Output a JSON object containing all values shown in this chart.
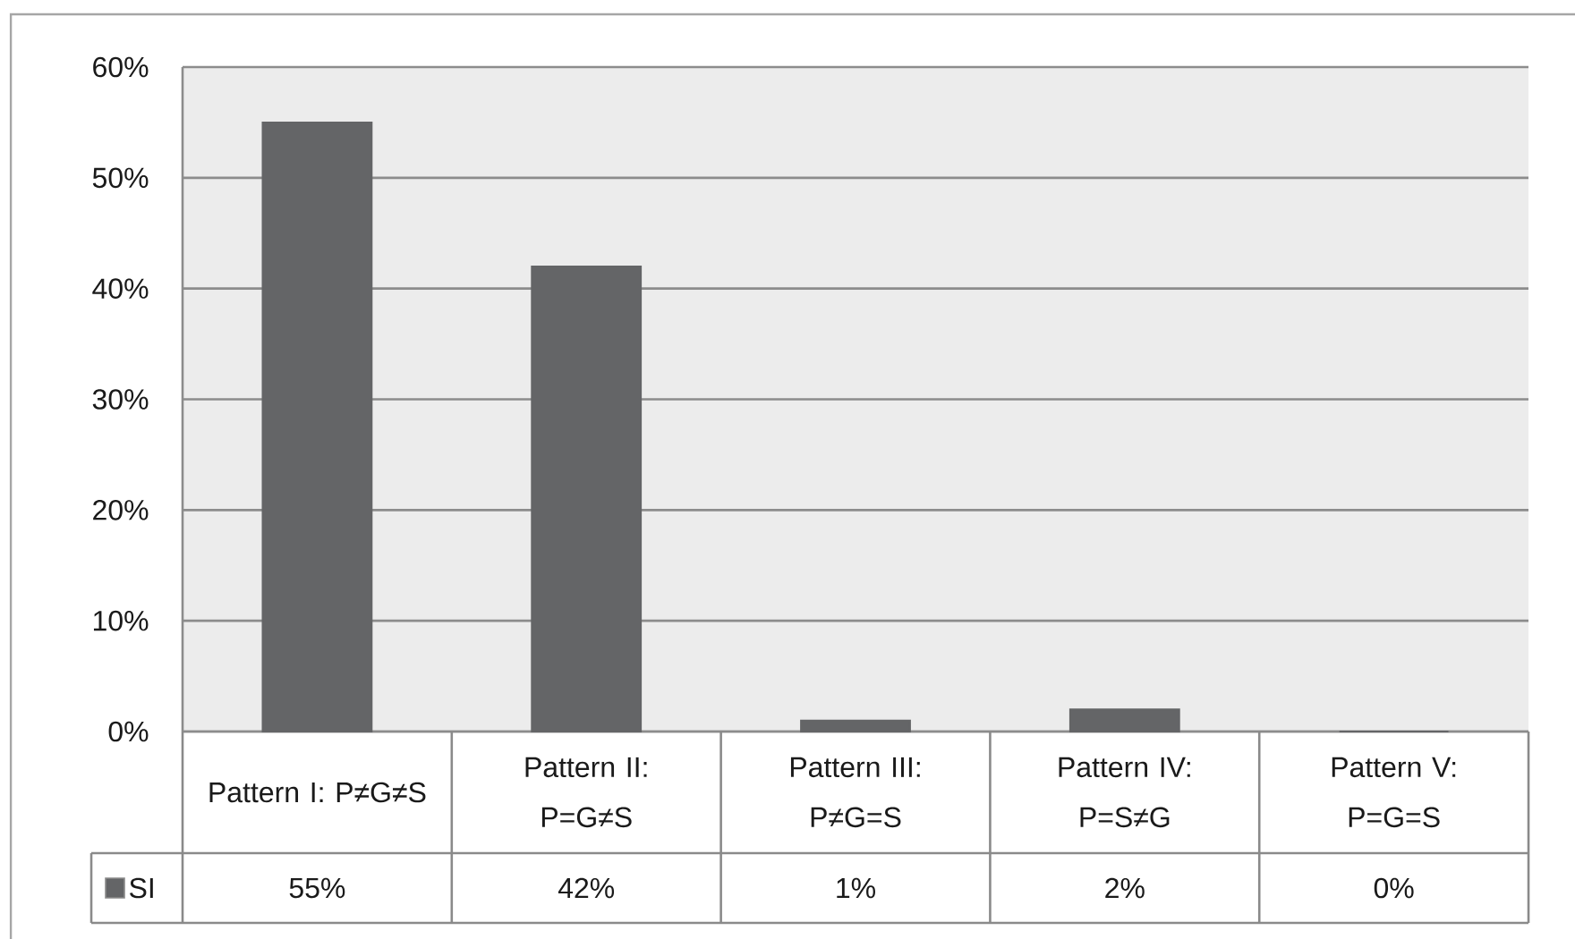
{
  "chart_data": {
    "type": "bar",
    "categories": [
      "Pattern I: P≠G≠S",
      "Pattern II: P=G≠S",
      "Pattern III: P≠G=S",
      "Pattern IV: P=S≠G",
      "Pattern V: P=G=S"
    ],
    "series": [
      {
        "name": "SI",
        "color": "#646567",
        "values": [
          55,
          42,
          1,
          2,
          0
        ],
        "value_labels": [
          "55%",
          "42%",
          "1%",
          "2%",
          "0%"
        ]
      }
    ],
    "ylim": [
      0,
      60
    ],
    "yticks": [
      {
        "value": 0,
        "label": "0%"
      },
      {
        "value": 10,
        "label": "10%"
      },
      {
        "value": 20,
        "label": "20%"
      },
      {
        "value": 30,
        "label": "30%"
      },
      {
        "value": 40,
        "label": "40%"
      },
      {
        "value": 50,
        "label": "50%"
      },
      {
        "value": 60,
        "label": "60%"
      }
    ],
    "grid": "y",
    "legend": "bottom left"
  }
}
